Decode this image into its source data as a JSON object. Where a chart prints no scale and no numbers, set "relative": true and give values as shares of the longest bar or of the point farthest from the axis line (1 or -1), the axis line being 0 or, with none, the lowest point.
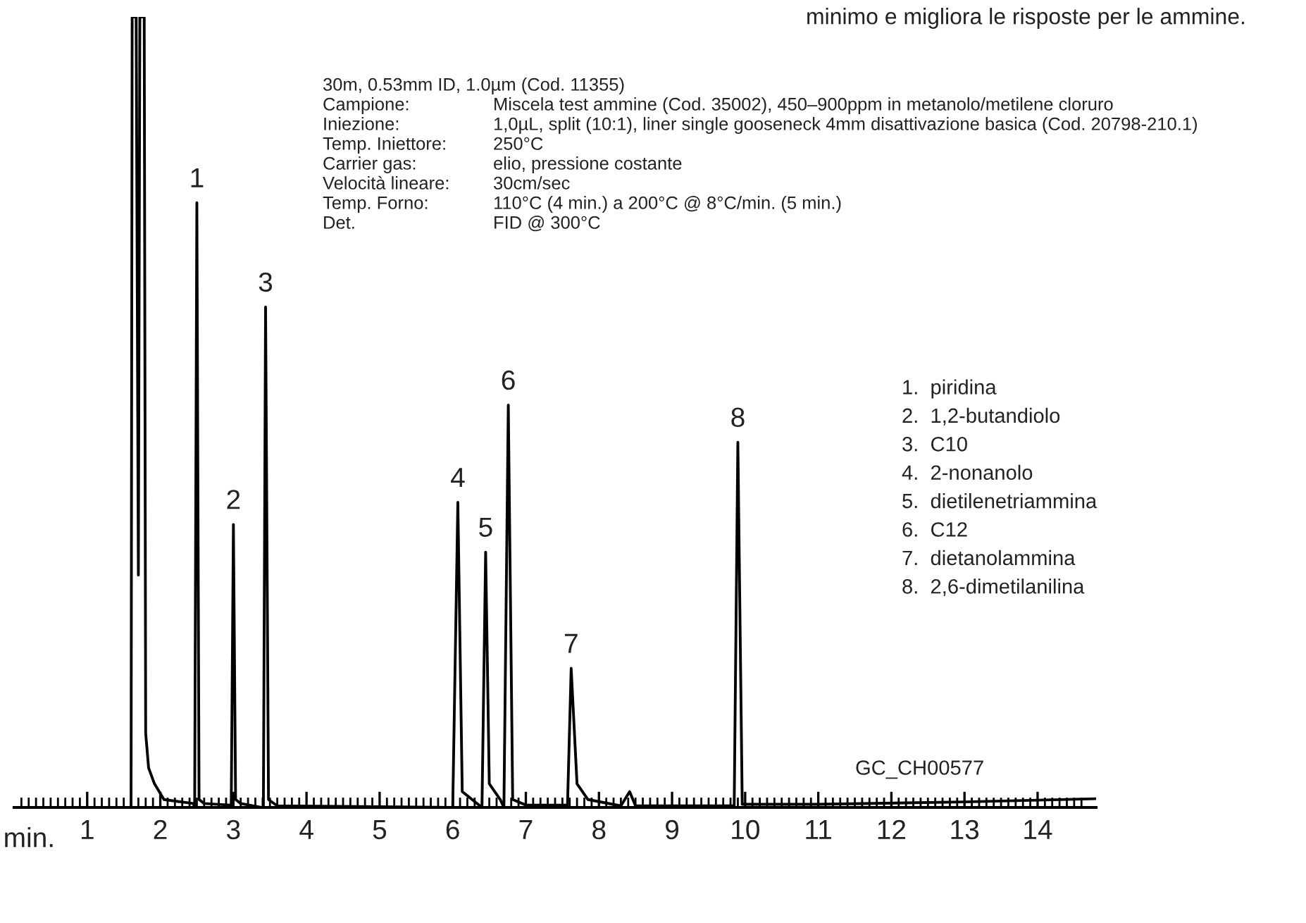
{
  "chart_data": {
    "type": "line",
    "relative": true,
    "title": "minimo e migliora le risposte per le ammine.",
    "xlabel": "min.",
    "xlim": [
      0,
      14.8
    ],
    "xticks": [
      {
        "value": 0.1,
        "label": null
      },
      {
        "value": 0.2,
        "label": null
      },
      {
        "value": 0.3,
        "label": null
      },
      {
        "value": 0.4,
        "label": null
      },
      {
        "value": 0.5,
        "label": null
      },
      {
        "value": 0.6,
        "label": null
      },
      {
        "value": 0.7,
        "label": null
      },
      {
        "value": 0.8,
        "label": null
      },
      {
        "value": 0.9,
        "label": null
      },
      1,
      {
        "value": 1.1,
        "label": null
      },
      {
        "value": 1.2,
        "label": null
      },
      {
        "value": 1.3,
        "label": null
      },
      {
        "value": 1.4,
        "label": null
      },
      {
        "value": 1.5,
        "label": null
      },
      {
        "value": 1.6,
        "label": null
      },
      {
        "value": 1.7,
        "label": null
      },
      {
        "value": 1.8,
        "label": null
      },
      {
        "value": 1.9,
        "label": null
      },
      2,
      {
        "value": 2.1,
        "label": null
      },
      {
        "value": 2.2,
        "label": null
      },
      {
        "value": 2.3,
        "label": null
      },
      {
        "value": 2.4,
        "label": null
      },
      {
        "value": 2.5,
        "label": null
      },
      {
        "value": 2.6,
        "label": null
      },
      {
        "value": 2.7,
        "label": null
      },
      {
        "value": 2.8,
        "label": null
      },
      {
        "value": 2.9,
        "label": null
      },
      3,
      {
        "value": 3.1,
        "label": null
      },
      {
        "value": 3.2,
        "label": null
      },
      {
        "value": 3.3,
        "label": null
      },
      {
        "value": 3.4,
        "label": null
      },
      {
        "value": 3.5,
        "label": null
      },
      {
        "value": 3.6,
        "label": null
      },
      {
        "value": 3.7,
        "label": null
      },
      {
        "value": 3.8,
        "label": null
      },
      {
        "value": 3.9,
        "label": null
      },
      4,
      {
        "value": 4.1,
        "label": null
      },
      {
        "value": 4.2,
        "label": null
      },
      {
        "value": 4.3,
        "label": null
      },
      {
        "value": 4.4,
        "label": null
      },
      {
        "value": 4.5,
        "label": null
      },
      {
        "value": 4.6,
        "label": null
      },
      {
        "value": 4.7,
        "label": null
      },
      {
        "value": 4.8,
        "label": null
      },
      {
        "value": 4.9,
        "label": null
      },
      5,
      {
        "value": 5.1,
        "label": null
      },
      {
        "value": 5.2,
        "label": null
      },
      {
        "value": 5.3,
        "label": null
      },
      {
        "value": 5.4,
        "label": null
      },
      {
        "value": 5.5,
        "label": null
      },
      {
        "value": 5.6,
        "label": null
      },
      {
        "value": 5.7,
        "label": null
      },
      {
        "value": 5.8,
        "label": null
      },
      {
        "value": 5.9,
        "label": null
      },
      6,
      {
        "value": 6.1,
        "label": null
      },
      {
        "value": 6.2,
        "label": null
      },
      {
        "value": 6.3,
        "label": null
      },
      {
        "value": 6.4,
        "label": null
      },
      {
        "value": 6.5,
        "label": null
      },
      {
        "value": 6.6,
        "label": null
      },
      {
        "value": 6.7,
        "label": null
      },
      {
        "value": 6.8,
        "label": null
      },
      {
        "value": 6.9,
        "label": null
      },
      7,
      {
        "value": 7.1,
        "label": null
      },
      {
        "value": 7.2,
        "label": null
      },
      {
        "value": 7.3,
        "label": null
      },
      {
        "value": 7.4,
        "label": null
      },
      {
        "value": 7.5,
        "label": null
      },
      {
        "value": 7.6,
        "label": null
      },
      {
        "value": 7.7,
        "label": null
      },
      {
        "value": 7.8,
        "label": null
      },
      {
        "value": 7.9,
        "label": null
      },
      8,
      {
        "value": 8.1,
        "label": null
      },
      {
        "value": 8.2,
        "label": null
      },
      {
        "value": 8.3,
        "label": null
      },
      {
        "value": 8.4,
        "label": null
      },
      {
        "value": 8.5,
        "label": null
      },
      {
        "value": 8.6,
        "label": null
      },
      {
        "value": 8.7,
        "label": null
      },
      {
        "value": 8.8,
        "label": null
      },
      {
        "value": 8.9,
        "label": null
      },
      9,
      {
        "value": 9.1,
        "label": null
      },
      {
        "value": 9.2,
        "label": null
      },
      {
        "value": 9.3,
        "label": null
      },
      {
        "value": 9.4,
        "label": null
      },
      {
        "value": 9.5,
        "label": null
      },
      {
        "value": 9.6,
        "label": null
      },
      {
        "value": 9.7,
        "label": null
      },
      {
        "value": 9.8,
        "label": null
      },
      {
        "value": 9.9,
        "label": null
      },
      10,
      {
        "value": 10.1,
        "label": null
      },
      {
        "value": 10.2,
        "label": null
      },
      {
        "value": 10.3,
        "label": null
      },
      {
        "value": 10.4,
        "label": null
      },
      {
        "value": 10.5,
        "label": null
      },
      {
        "value": 10.6,
        "label": null
      },
      {
        "value": 10.7,
        "label": null
      },
      {
        "value": 10.8,
        "label": null
      },
      {
        "value": 10.9,
        "label": null
      },
      11,
      {
        "value": 11.1,
        "label": null
      },
      {
        "value": 11.2,
        "label": null
      },
      {
        "value": 11.3,
        "label": null
      },
      {
        "value": 11.4,
        "label": null
      },
      {
        "value": 11.5,
        "label": null
      },
      {
        "value": 11.6,
        "label": null
      },
      {
        "value": 11.7,
        "label": null
      },
      {
        "value": 11.8,
        "label": null
      },
      {
        "value": 11.9,
        "label": null
      },
      12,
      {
        "value": 12.1,
        "label": null
      },
      {
        "value": 12.2,
        "label": null
      },
      {
        "value": 12.3,
        "label": null
      },
      {
        "value": 12.4,
        "label": null
      },
      {
        "value": 12.5,
        "label": null
      },
      {
        "value": 12.6,
        "label": null
      },
      {
        "value": 12.7,
        "label": null
      },
      {
        "value": 12.8,
        "label": null
      },
      {
        "value": 12.9,
        "label": null
      },
      13,
      {
        "value": 13.1,
        "label": null
      },
      {
        "value": 13.2,
        "label": null
      },
      {
        "value": 13.3,
        "label": null
      },
      {
        "value": 13.4,
        "label": null
      },
      {
        "value": 13.5,
        "label": null
      },
      {
        "value": 13.6,
        "label": null
      },
      {
        "value": 13.7,
        "label": null
      },
      {
        "value": 13.8,
        "label": null
      },
      {
        "value": 13.9,
        "label": null
      },
      14,
      {
        "value": 14.1,
        "label": null
      },
      {
        "value": 14.2,
        "label": null
      },
      {
        "value": 14.3,
        "label": null
      },
      {
        "value": 14.4,
        "label": null
      },
      {
        "value": 14.5,
        "label": null
      },
      {
        "value": 14.6,
        "label": null
      }
    ],
    "grid": false,
    "legend": false,
    "marker": "none",
    "line_style": "solid",
    "series": [
      {
        "color": "#000000",
        "x": [
          0.02,
          1.0,
          1.6,
          1.615,
          1.67,
          1.7,
          1.72,
          1.78,
          1.8,
          1.84,
          1.92,
          2.05,
          2.45,
          2.47,
          2.5,
          2.53,
          2.6,
          2.95,
          2.97,
          3.0,
          3.03,
          3.1,
          3.38,
          3.41,
          3.44,
          3.48,
          3.6,
          6.0,
          6.07,
          6.13,
          6.4,
          6.45,
          6.5,
          6.65,
          6.7,
          6.76,
          6.82,
          7.0,
          7.57,
          7.62,
          7.7,
          7.85,
          8.3,
          8.42,
          8.5,
          9.85,
          9.9,
          9.96,
          11.0,
          13.0,
          14.79
        ],
        "values": [
          0.0,
          0.0,
          0.0,
          1.0,
          1.0,
          0.294,
          1.0,
          1.0,
          0.094,
          0.05,
          0.03,
          0.01,
          0.005,
          0.0,
          0.765,
          0.01,
          0.005,
          0.003,
          0.0,
          0.358,
          0.01,
          0.005,
          0.0,
          0.0,
          0.633,
          0.01,
          0.002,
          0.0,
          0.386,
          0.02,
          0.0,
          0.323,
          0.03,
          0.01,
          0.0,
          0.509,
          0.01,
          0.003,
          0.003,
          0.176,
          0.03,
          0.01,
          0.002,
          0.02,
          0.002,
          0.002,
          0.462,
          0.004,
          0.004,
          0.007,
          0.011
        ]
      }
    ],
    "annotations": [
      "30m, 0.53mm ID, 1.0µm (Cod. 11355)",
      "Campione:",
      "Miscela test ammine (Cod. 35002), 450–900ppm in metanolo/metilene cloruro",
      "Iniezione:",
      "1,0µL, split (10:1), liner single gooseneck 4mm disattivazione basica (Cod. 20798-210.1)",
      "Temp. Iniettore:",
      "250°C",
      "Carrier gas:",
      "elio, pressione costante",
      "Velocità lineare:",
      "30cm/sec",
      "Temp. Forno:",
      "110°C (4 min.) a 200°C @ 8°C/min. (5 min.)",
      "Det.",
      "FID @ 300°C",
      "1.  piridina",
      "2.  1,2-butandiolo",
      "3.  C10",
      "4.  2-nonanolo",
      "5.  dietilenetriammina",
      "6.  C12",
      "7.  dietanolammina",
      "8.  2,6-dimetilanilina",
      "GC_CH00577",
      {
        "text": "1",
        "x": 2.5,
        "y": 0.765
      },
      {
        "text": "2",
        "x": 3.0,
        "y": 0.358
      },
      {
        "text": "3",
        "x": 3.44,
        "y": 0.633
      },
      {
        "text": "4",
        "x": 6.07,
        "y": 0.386
      },
      {
        "text": "5",
        "x": 6.45,
        "y": 0.323
      },
      {
        "text": "6",
        "x": 6.76,
        "y": 0.509
      },
      {
        "text": "7",
        "x": 7.62,
        "y": 0.176
      },
      {
        "text": "8",
        "x": 9.9,
        "y": 0.462
      }
    ]
  }
}
